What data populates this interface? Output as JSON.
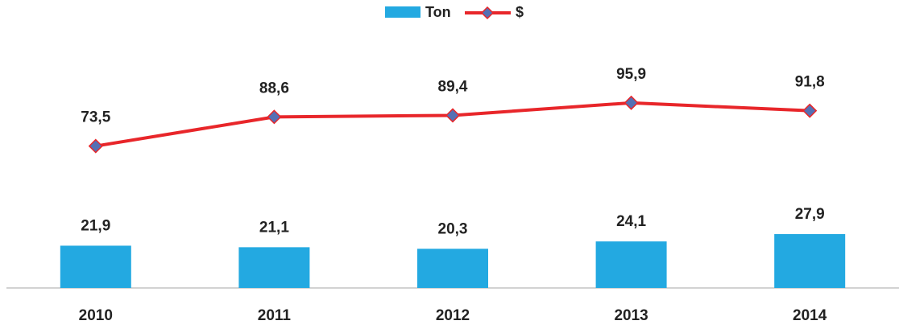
{
  "chart_data": {
    "type": "bar-line",
    "categories": [
      "2010",
      "2011",
      "2012",
      "2013",
      "2014"
    ],
    "series": [
      {
        "name": "Ton",
        "type": "bar",
        "color": "#23a9e1",
        "values": [
          21.9,
          21.1,
          20.3,
          24.1,
          27.9
        ],
        "value_labels": [
          "21,9",
          "21,1",
          "20,3",
          "24,1",
          "27,9"
        ]
      },
      {
        "name": "$",
        "type": "line",
        "color": "#e8262a",
        "marker_color": "#5470b4",
        "values": [
          73.5,
          88.6,
          89.4,
          95.9,
          91.8
        ],
        "value_labels": [
          "73,5",
          "88,6",
          "89,4",
          "95,9",
          "91,8"
        ]
      }
    ],
    "ylim": [
      0,
      130
    ],
    "legend": "top"
  }
}
